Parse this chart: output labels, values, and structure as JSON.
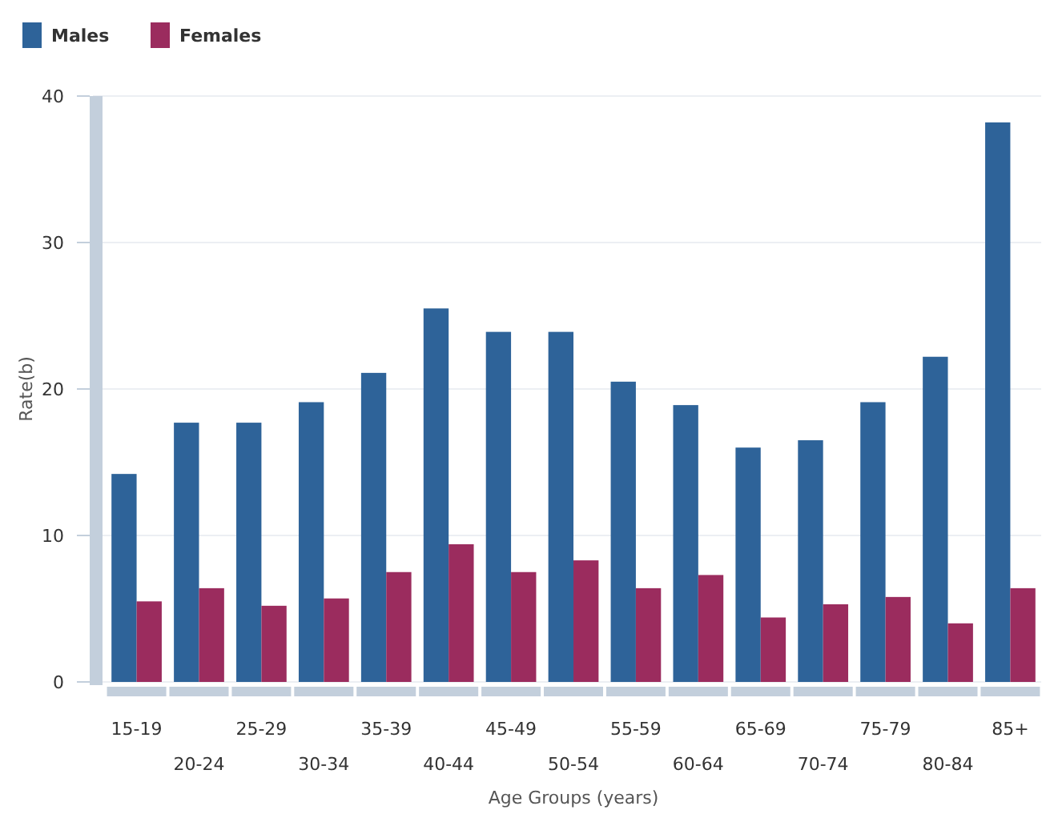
{
  "chart_data": {
    "type": "bar",
    "xlabel": "Age Groups (years)",
    "ylabel": "Rate(b)",
    "categories": [
      "15-19",
      "20-24",
      "25-29",
      "30-34",
      "35-39",
      "40-44",
      "45-49",
      "50-54",
      "55-59",
      "60-64",
      "65-69",
      "70-74",
      "75-79",
      "80-84",
      "85+"
    ],
    "series": [
      {
        "name": "Males",
        "color": "#2e6399",
        "values": [
          14.2,
          17.7,
          17.7,
          19.1,
          21.1,
          25.5,
          23.9,
          23.9,
          20.5,
          18.9,
          16.0,
          16.5,
          19.1,
          22.2,
          38.2
        ]
      },
      {
        "name": "Females",
        "color": "#9b2c5e",
        "values": [
          5.5,
          6.4,
          5.2,
          5.7,
          7.5,
          9.4,
          7.5,
          8.3,
          6.4,
          7.3,
          4.4,
          5.3,
          5.8,
          4.0,
          6.4
        ]
      }
    ],
    "ylim": [
      0,
      40
    ],
    "yticks": [
      0,
      10,
      20,
      30,
      40
    ],
    "grid": "y",
    "legend": "top left"
  }
}
